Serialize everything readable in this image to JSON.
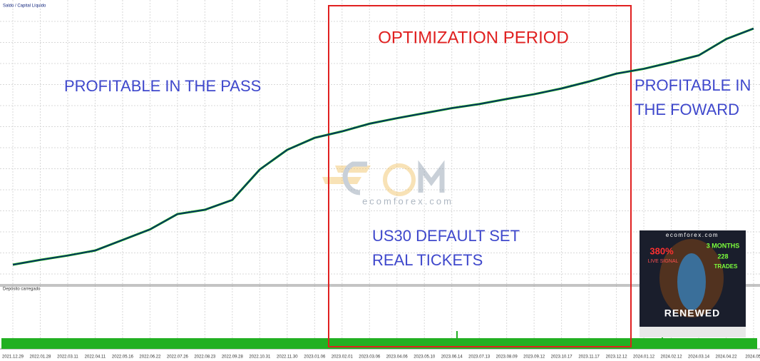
{
  "chart_data": {
    "type": "line",
    "legend_label": "Saldo / Capital Líquido",
    "lower_panel_title": "Depósito carregado",
    "categories": [
      "2021.12.29",
      "2022.01.28",
      "2022.03.11",
      "2022.04.11",
      "2022.05.16",
      "2022.06.22",
      "2022.07.26",
      "2022.08.23",
      "2022.09.28",
      "2022.10.31",
      "2022.11.30",
      "2023.01.06",
      "2023.02.01",
      "2023.03.06",
      "2023.04.06",
      "2023.05.10",
      "2023.06.14",
      "2023.07.13",
      "2023.08.09",
      "2023.09.12",
      "2023.10.17",
      "2023.11.17",
      "2023.12.12",
      "2024.01.12",
      "2024.02.12",
      "2024.03.14",
      "2024.04.22",
      "2024.05."
    ],
    "series": [
      {
        "name": "Capital Líquido",
        "color": "#00a000",
        "values": [
          1.5,
          3.5,
          5.3,
          7.4,
          11.8,
          16.2,
          22.6,
          24.4,
          28.5,
          41.2,
          49.4,
          54.4,
          57.1,
          60.3,
          62.6,
          64.7,
          66.8,
          68.5,
          70.6,
          72.6,
          75.0,
          77.9,
          81.2,
          83.2,
          85.9,
          88.8,
          95.6,
          100
        ]
      },
      {
        "name": "Saldo",
        "color": "#0b1f7a",
        "values": [
          1.5,
          3.5,
          5.3,
          7.4,
          11.8,
          16.2,
          22.6,
          24.4,
          28.5,
          41.2,
          49.4,
          54.4,
          57.1,
          60.3,
          62.6,
          64.7,
          66.8,
          68.5,
          70.6,
          72.6,
          75.0,
          77.9,
          81.2,
          83.2,
          85.9,
          88.8,
          95.6,
          100
        ]
      }
    ],
    "ylim": [
      0,
      100
    ],
    "grid": true,
    "annotations": [
      {
        "lines": [
          "OPTIMIZATION PERIOD"
        ],
        "color": "#e02020"
      },
      {
        "lines": [
          "PROFITABLE IN THE PASS"
        ],
        "color": "#3f48cc"
      },
      {
        "lines": [
          "PROFITABLE IN",
          "THE FOWARD"
        ],
        "color": "#3f48cc"
      },
      {
        "lines": [
          "US30 DEFAULT SET",
          "REAL TICKETS"
        ],
        "color": "#3f48cc"
      }
    ],
    "watermark": "ecomforex.com",
    "ad": {
      "site": "ecomforex.com",
      "percent": "380%",
      "live": "LIVE SIGNAL",
      "months": "3 MONTHS",
      "trades_count": "228",
      "trades": "TRADES",
      "footer": "RENEWED"
    }
  }
}
